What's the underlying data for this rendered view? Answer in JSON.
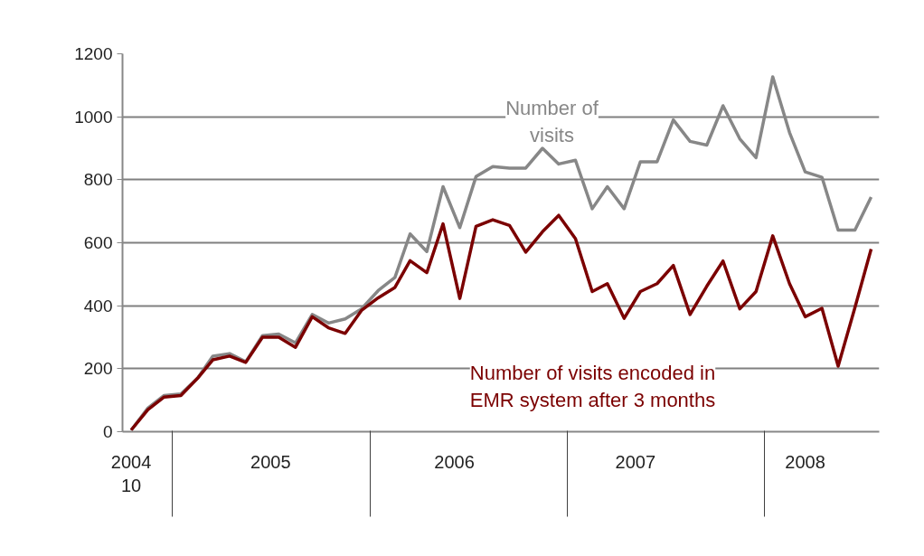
{
  "chart_data": {
    "type": "line",
    "x": [
      "2004-10",
      "2004-11",
      "2004-12",
      "2005-01",
      "2005-02",
      "2005-03",
      "2005-04",
      "2005-05",
      "2005-06",
      "2005-07",
      "2005-08",
      "2005-09",
      "2005-10",
      "2005-11",
      "2005-12",
      "2006-01",
      "2006-02",
      "2006-03",
      "2006-04",
      "2006-05",
      "2006-06",
      "2006-07",
      "2006-08",
      "2006-09",
      "2006-10",
      "2006-11",
      "2006-12",
      "2007-01",
      "2007-02",
      "2007-03",
      "2007-04",
      "2007-05",
      "2007-06",
      "2007-07",
      "2007-08",
      "2007-09",
      "2007-10",
      "2007-11",
      "2007-12",
      "2008-01",
      "2008-02",
      "2008-03",
      "2008-04",
      "2008-05",
      "2008-06",
      "2008-07"
    ],
    "series": [
      {
        "name": "Number of visits",
        "color": "#878787",
        "values": [
          5,
          75,
          115,
          120,
          170,
          240,
          248,
          222,
          305,
          310,
          282,
          372,
          345,
          358,
          390,
          448,
          490,
          628,
          572,
          778,
          648,
          810,
          842,
          837,
          837,
          900,
          850,
          862,
          708,
          778,
          708,
          857,
          857,
          990,
          922,
          910,
          1035,
          930,
          870,
          1127,
          950,
          825,
          808,
          640,
          640,
          745
        ]
      },
      {
        "name": "Number of visits encoded in EMR system after 3 months",
        "color": "#7b0000",
        "values": [
          5,
          70,
          110,
          115,
          170,
          228,
          240,
          220,
          300,
          300,
          268,
          365,
          330,
          312,
          385,
          425,
          458,
          543,
          505,
          660,
          423,
          652,
          673,
          655,
          570,
          635,
          687,
          613,
          445,
          470,
          360,
          445,
          470,
          528,
          372,
          462,
          542,
          390,
          445,
          622,
          470,
          365,
          392,
          208,
          394,
          580
        ]
      }
    ],
    "xlim": [
      "2004-09-15",
      "2008-07-16"
    ],
    "xticks": [
      {
        "value": "2004-10-01",
        "label": "2004\n10"
      },
      {
        "value": "2005-06-16",
        "label": "2005"
      },
      {
        "value": "2006-05-22",
        "label": "2006"
      },
      {
        "value": "2007-04-22",
        "label": "2007"
      },
      {
        "value": "2008-03-01",
        "label": "2008"
      }
    ],
    "ylim": [
      0,
      1200
    ],
    "yticks": [
      0,
      200,
      400,
      600,
      800,
      1000,
      1200
    ],
    "grid": "y",
    "marker": "none",
    "line_style": "solid"
  }
}
